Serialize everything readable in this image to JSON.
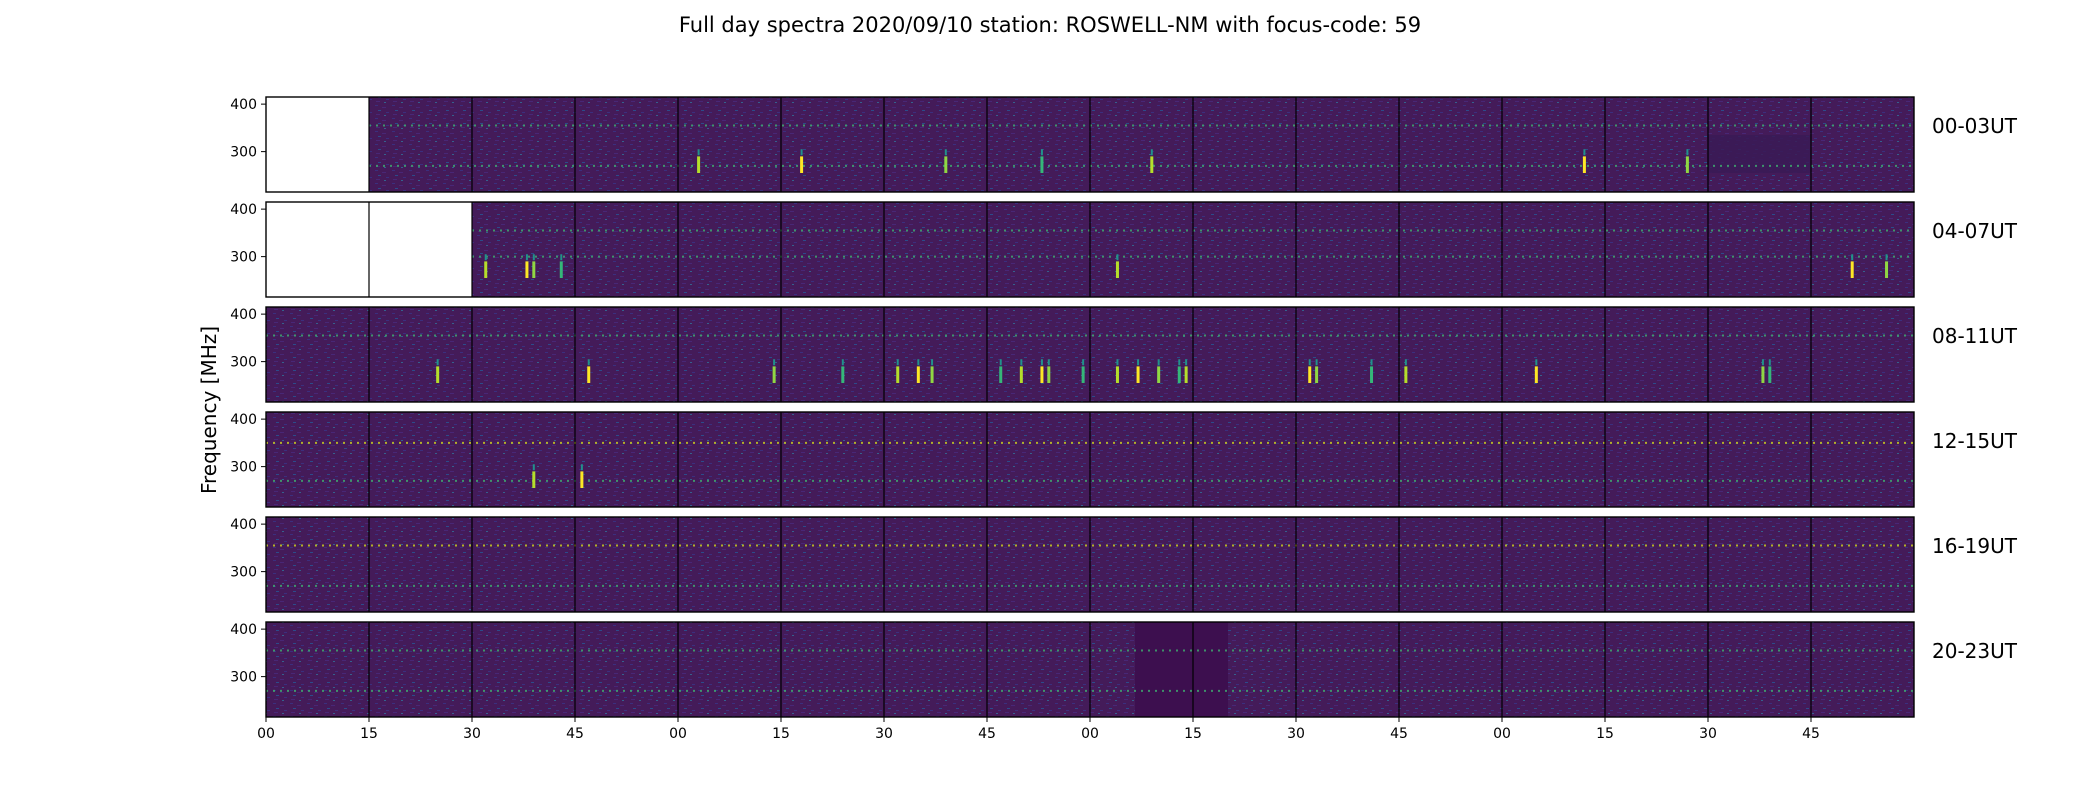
{
  "chart_data": {
    "type": "heatmap",
    "title": "Full day spectra 2020/09/10 station: ROSWELL-NM with focus-code: 59",
    "ylabel": "Frequency [MHz]",
    "xlabel": "",
    "colormap": "viridis",
    "ylim": [
      215,
      415
    ],
    "y_ticks": [
      300,
      400
    ],
    "x_tick_labels": [
      "00",
      "15",
      "30",
      "45",
      "00",
      "15",
      "30",
      "45",
      "00",
      "15",
      "30",
      "45",
      "00",
      "15",
      "30",
      "45"
    ],
    "panels_per_row": 16,
    "panel_minutes": 15,
    "rows": [
      {
        "label": "00-03UT",
        "missing_panels": [
          0
        ],
        "interference_bands_mhz": [
          355,
          270
        ],
        "bright_bursts": [
          {
            "panel": 4,
            "minute": 3
          },
          {
            "panel": 5,
            "minute": 3
          },
          {
            "panel": 6,
            "minute": 9
          },
          {
            "panel": 7,
            "minute": 8
          },
          {
            "panel": 8,
            "minute": 9
          },
          {
            "panel": 12,
            "minute": 12
          },
          {
            "panel": 13,
            "minute": 12
          }
        ]
      },
      {
        "label": "04-07UT",
        "missing_panels": [
          0,
          1
        ],
        "interference_bands_mhz": [
          355,
          300
        ],
        "bright_bursts": [
          {
            "panel": 2,
            "minute": 2
          },
          {
            "panel": 2,
            "minute": 8
          },
          {
            "panel": 2,
            "minute": 9
          },
          {
            "panel": 2,
            "minute": 13
          },
          {
            "panel": 8,
            "minute": 4
          },
          {
            "panel": 15,
            "minute": 6
          },
          {
            "panel": 15,
            "minute": 11
          }
        ]
      },
      {
        "label": "08-11UT",
        "missing_panels": [],
        "interference_bands_mhz": [
          355
        ],
        "bright_bursts": [
          {
            "panel": 1,
            "minute": 10
          },
          {
            "panel": 3,
            "minute": 2
          },
          {
            "panel": 4,
            "minute": 14
          },
          {
            "panel": 5,
            "minute": 9
          },
          {
            "panel": 6,
            "minute": 2
          },
          {
            "panel": 6,
            "minute": 5
          },
          {
            "panel": 6,
            "minute": 7
          },
          {
            "panel": 7,
            "minute": 2
          },
          {
            "panel": 7,
            "minute": 5
          },
          {
            "panel": 7,
            "minute": 8
          },
          {
            "panel": 7,
            "minute": 9
          },
          {
            "panel": 7,
            "minute": 14
          },
          {
            "panel": 8,
            "minute": 4
          },
          {
            "panel": 8,
            "minute": 7
          },
          {
            "panel": 8,
            "minute": 10
          },
          {
            "panel": 8,
            "minute": 13
          },
          {
            "panel": 8,
            "minute": 14
          },
          {
            "panel": 10,
            "minute": 2
          },
          {
            "panel": 10,
            "minute": 3
          },
          {
            "panel": 10,
            "minute": 11
          },
          {
            "panel": 11,
            "minute": 1
          },
          {
            "panel": 12,
            "minute": 5
          },
          {
            "panel": 14,
            "minute": 8
          },
          {
            "panel": 14,
            "minute": 9
          }
        ]
      },
      {
        "label": "12-15UT",
        "missing_panels": [],
        "interference_bands_mhz": [
          350,
          270
        ],
        "bright_bursts": [
          {
            "panel": 2,
            "minute": 9
          },
          {
            "panel": 3,
            "minute": 1
          }
        ]
      },
      {
        "label": "16-19UT",
        "missing_panels": [],
        "interference_bands_mhz": [
          355,
          270
        ],
        "bright_bursts": []
      },
      {
        "label": "20-23UT",
        "missing_panels": [],
        "interference_bands_mhz": [
          355,
          270
        ],
        "bright_bursts": []
      }
    ]
  }
}
